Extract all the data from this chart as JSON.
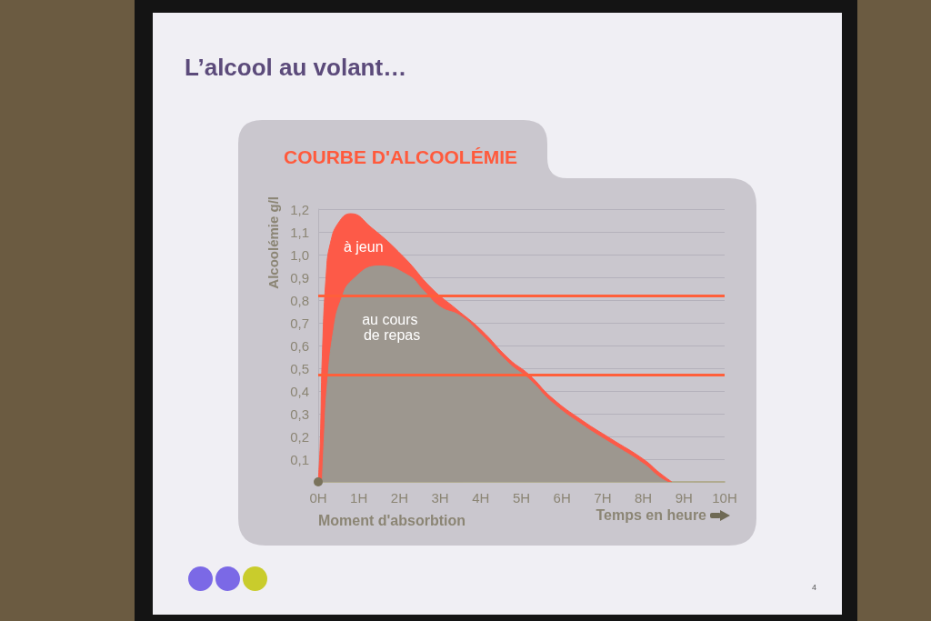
{
  "chart_data": {
    "type": "area",
    "title": "L’alcool au volant…",
    "subtitle": "COURBE D'ALCOOLÉMIE",
    "xlabel": "Temps en heure",
    "ylabel": "Alcoolémie g/l",
    "annotations": [
      {
        "text": "Moment d'absorbtion",
        "x": 0,
        "y": 0
      },
      "4"
    ],
    "series": [
      {
        "name": "à jeun",
        "color": "#fd5a48",
        "x": [
          0,
          0.05,
          0.1,
          0.2,
          0.3,
          0.5,
          0.8,
          1.3,
          2.1,
          2.8,
          3.4,
          4.0,
          4.7,
          5.2,
          5.75,
          6.5,
          7.2,
          8.0,
          8.4,
          8.7
        ],
        "values": [
          0,
          0.17,
          0.55,
          0.92,
          1.05,
          1.14,
          1.18,
          1.12,
          0.99,
          0.85,
          0.76,
          0.67,
          0.54,
          0.47,
          0.37,
          0.27,
          0.19,
          0.1,
          0.04,
          0
        ]
      },
      {
        "name": "au cours de repas",
        "color": "#9d978f",
        "x": [
          0.1,
          0.15,
          0.22,
          0.38,
          0.56,
          0.85,
          1.5,
          2.2,
          2.6,
          3.0,
          3.5,
          4.0,
          4.7,
          5.2,
          5.75,
          6.5,
          7.2,
          8.0,
          8.4,
          8.6
        ],
        "values": [
          0,
          0.2,
          0.42,
          0.67,
          0.8,
          0.89,
          0.95,
          0.91,
          0.84,
          0.77,
          0.73,
          0.65,
          0.52,
          0.45,
          0.35,
          0.25,
          0.17,
          0.08,
          0.02,
          0
        ]
      }
    ],
    "xlim": [
      0,
      10
    ],
    "xticks": [
      {
        "value": 0,
        "label": "0H"
      },
      {
        "value": 1,
        "label": "1H"
      },
      {
        "value": 2,
        "label": "2H"
      },
      {
        "value": 3,
        "label": "3H"
      },
      {
        "value": 4,
        "label": "4H"
      },
      {
        "value": 5,
        "label": "5H"
      },
      {
        "value": 6,
        "label": "6H"
      },
      {
        "value": 7,
        "label": "7H"
      },
      {
        "value": 8,
        "label": "8H"
      },
      {
        "value": 9,
        "label": "9H"
      },
      {
        "value": 10,
        "label": "10H"
      }
    ],
    "ylim": [
      0,
      1.2
    ],
    "yticks": [
      {
        "value": 0.1,
        "label": "0,1"
      },
      {
        "value": 0.2,
        "label": "0,2"
      },
      {
        "value": 0.3,
        "label": "0,3"
      },
      {
        "value": 0.4,
        "label": "0,4"
      },
      {
        "value": 0.5,
        "label": "0,5"
      },
      {
        "value": 0.6,
        "label": "0,6"
      },
      {
        "value": 0.7,
        "label": "0,7"
      },
      {
        "value": 0.8,
        "label": "0,8"
      },
      {
        "value": 0.9,
        "label": "0,9"
      },
      {
        "value": 1.0,
        "label": "1,0"
      },
      {
        "value": 1.1,
        "label": "1,1"
      },
      {
        "value": 1.2,
        "label": "1,2"
      }
    ],
    "grid": "y",
    "ref_lines": [
      {
        "axis": "y",
        "value": 0.82,
        "color": "#ff5f3a"
      },
      {
        "axis": "y",
        "value": 0.47,
        "color": "#ff5f3a"
      }
    ]
  }
}
